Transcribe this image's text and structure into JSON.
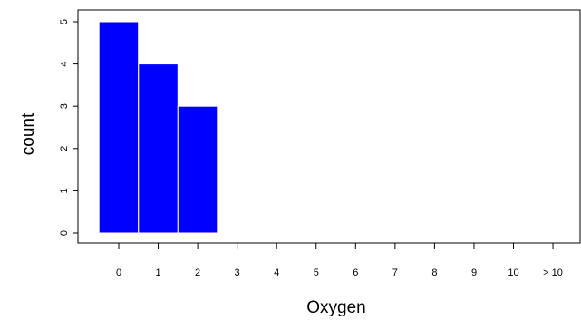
{
  "chart_data": {
    "type": "bar",
    "xlabel": "Oxygen",
    "ylabel": "count",
    "categories": [
      "0",
      "1",
      "2",
      "3",
      "4",
      "5",
      "6",
      "7",
      "8",
      "9",
      "10",
      "> 10"
    ],
    "values": [
      5,
      4,
      3,
      0,
      0,
      0,
      0,
      0,
      0,
      0,
      0,
      0
    ],
    "yticks": [
      "0",
      "1",
      "2",
      "3",
      "4",
      "5"
    ],
    "ylim": [
      0,
      5
    ],
    "bar_color": "#0000ff",
    "grid": false
  }
}
